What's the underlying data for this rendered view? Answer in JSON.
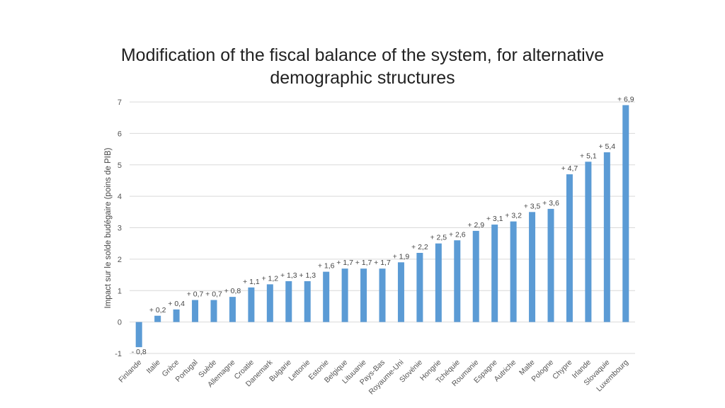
{
  "chart_data": {
    "type": "bar",
    "title_lines": [
      "Modification of the fiscal balance of the system, for alternative",
      "demographic structures"
    ],
    "ylabel": "Impact sur le solde budégaire (poins de PIB)",
    "xlabel": "",
    "ylim": [
      -1,
      7
    ],
    "yticks": [
      -1,
      0,
      1,
      2,
      3,
      4,
      5,
      6,
      7
    ],
    "grid": true,
    "bar_color": "#5b9bd5",
    "categories": [
      "Finlande",
      "Italie",
      "Grèce",
      "Portugal",
      "Suède",
      "Allemagne",
      "Croatie",
      "Danemark",
      "Bulgarie",
      "Lettonie",
      "Estonie",
      "Belgique",
      "Lituuanie",
      "Pays-Bas",
      "Royaume-Uni",
      "Slovénie",
      "Hongrie",
      "Tchéquie",
      "Roumanie",
      "Espagne",
      "Autriche",
      "Malte",
      "Pologne",
      "Chypre",
      "Irlande",
      "Slovaquie",
      "Luxembourg"
    ],
    "values": [
      -0.8,
      0.2,
      0.4,
      0.7,
      0.7,
      0.8,
      1.1,
      1.2,
      1.3,
      1.3,
      1.6,
      1.7,
      1.7,
      1.7,
      1.9,
      2.2,
      2.5,
      2.6,
      2.9,
      3.1,
      3.2,
      3.5,
      3.6,
      4.7,
      5.1,
      5.4,
      6.9
    ],
    "labels": [
      "- 0,8",
      "+ 0,2",
      "+ 0,4",
      "+ 0,7",
      "+ 0,7",
      "+ 0,8",
      "+ 1,1",
      "+ 1,2",
      "+ 1,3",
      "+ 1,3",
      "+ 1,6",
      "+ 1,7",
      "+ 1,7",
      "+ 1,7",
      "+ 1,9",
      "+ 2,2",
      "+ 2,5",
      "+ 2,6",
      "+ 2,9",
      "+ 3,1",
      "+ 3,2",
      "+ 3,5",
      "+ 3,6",
      "+ 4,7",
      "+ 5,1",
      "+ 5,4",
      "+ 6,9"
    ]
  }
}
